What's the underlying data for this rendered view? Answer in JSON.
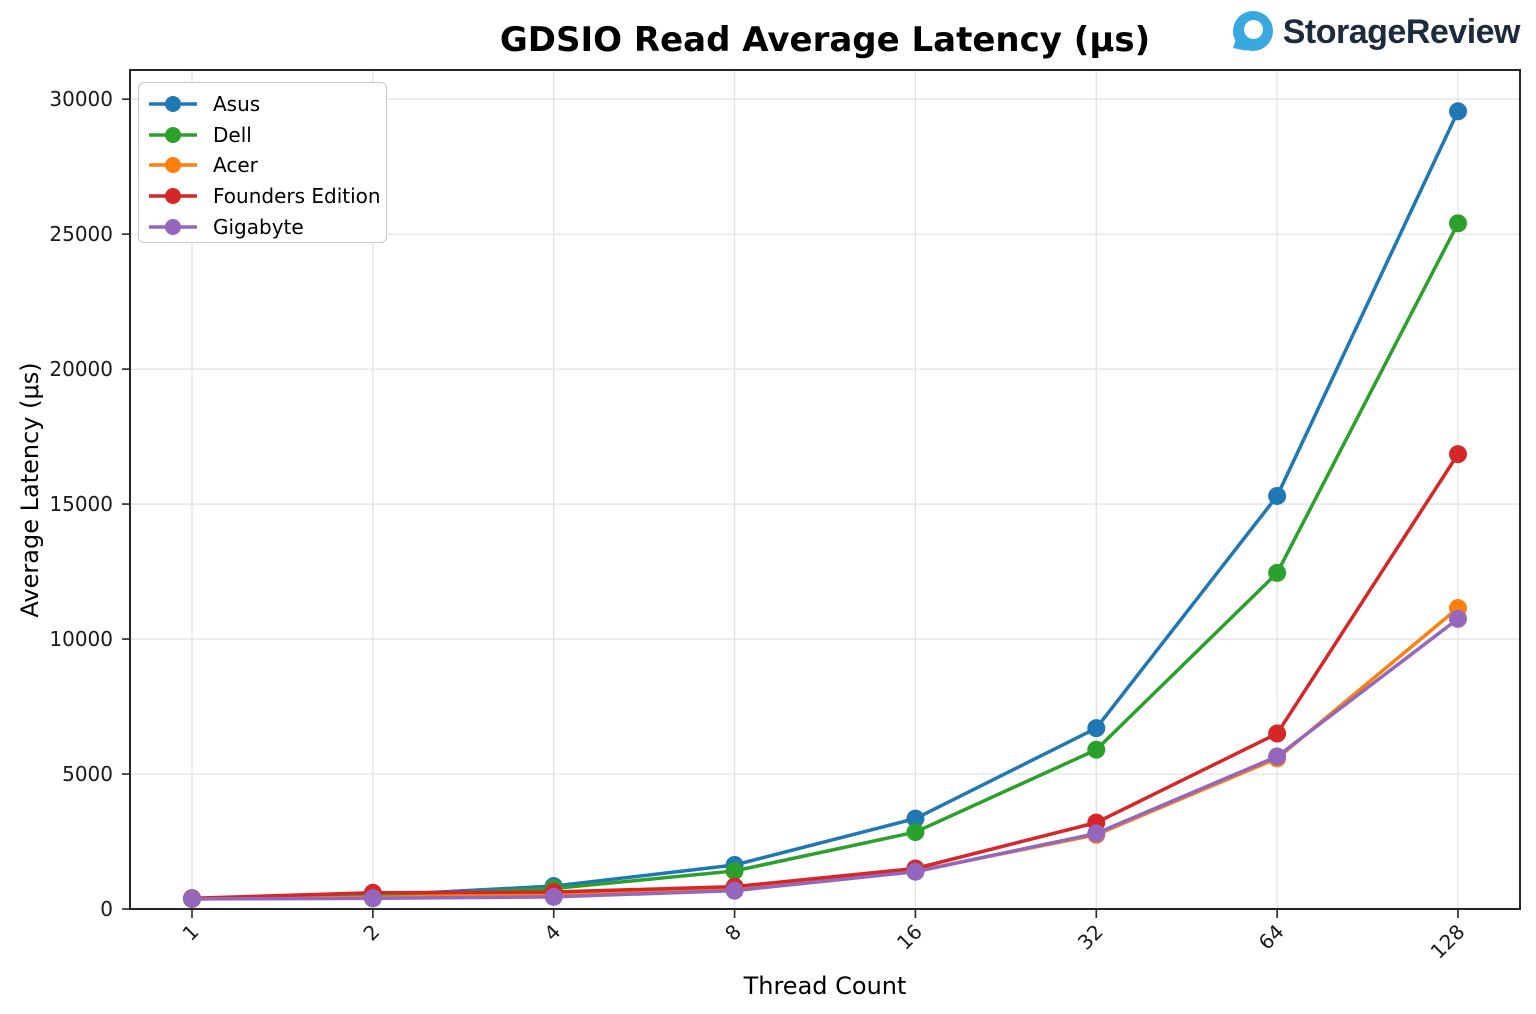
{
  "logo": {
    "text": "StorageReview",
    "icon": "storagereview-pin-icon",
    "icon_color": "#38a8e0",
    "text_color": "#1d2b3f"
  },
  "chart_data": {
    "type": "line",
    "title": "GDSIO Read Average Latency (μs)",
    "xlabel": "Thread Count",
    "ylabel": "Average Latency (μs)",
    "categories": [
      "1",
      "2",
      "4",
      "8",
      "16",
      "32",
      "64",
      "128"
    ],
    "x_tick_rotation_deg": 45,
    "yticks": [
      0,
      5000,
      10000,
      15000,
      20000,
      25000,
      30000
    ],
    "ylim": [
      0,
      31080
    ],
    "grid": true,
    "legend_position": "upper-left",
    "series": [
      {
        "name": "Asus",
        "color": "#1f77b4",
        "values": [
          390,
          500,
          850,
          1630,
          3350,
          6700,
          15300,
          29550
        ]
      },
      {
        "name": "Dell",
        "color": "#2ca02c",
        "values": [
          380,
          460,
          760,
          1410,
          2850,
          5900,
          12450,
          25400
        ]
      },
      {
        "name": "Acer",
        "color": "#ff7f0e",
        "values": [
          370,
          430,
          560,
          700,
          1400,
          2750,
          5580,
          11150
        ]
      },
      {
        "name": "Founders Edition",
        "color": "#d62728",
        "values": [
          400,
          600,
          630,
          830,
          1500,
          3200,
          6500,
          16850
        ]
      },
      {
        "name": "Gigabyte",
        "color": "#9467bd",
        "values": [
          375,
          395,
          450,
          680,
          1380,
          2800,
          5650,
          10750
        ]
      }
    ],
    "style": {
      "grid_color": "#e3e3e3",
      "frame_color": "#262626",
      "tick_label_color": "#1a1a1a",
      "line_width": 3.5,
      "marker_radius": 9
    }
  }
}
